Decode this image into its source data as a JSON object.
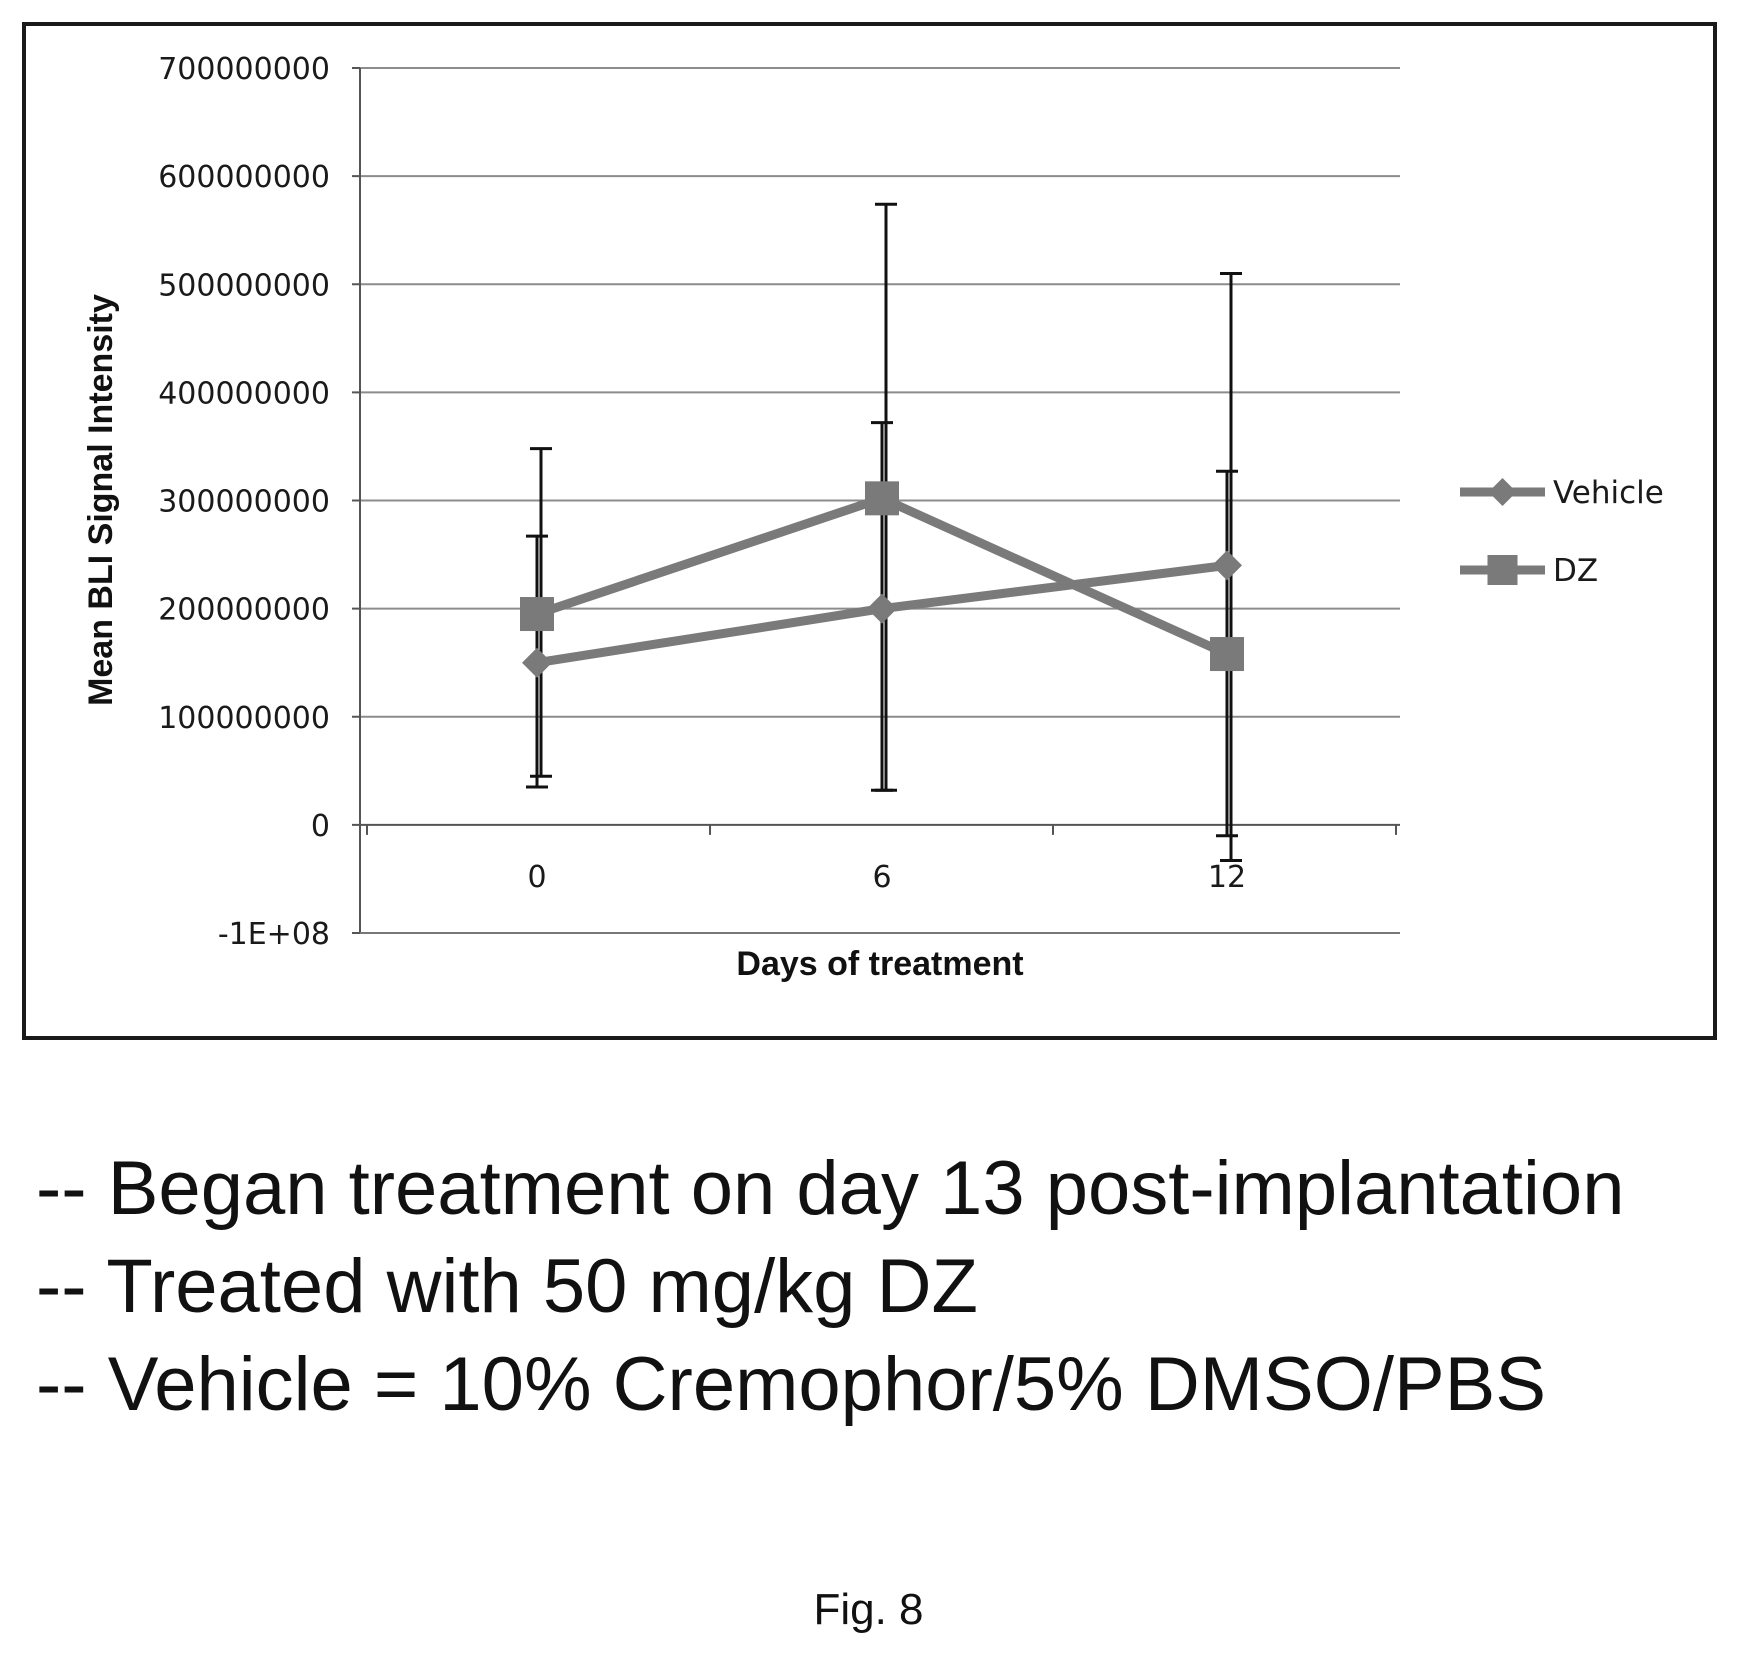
{
  "chart_data": {
    "type": "line",
    "title": "",
    "xlabel": "Days of treatment",
    "ylabel": "Mean BLI Signal Intensity",
    "x": [
      0,
      6,
      12
    ],
    "x_tick_labels": [
      "0",
      "6",
      "12"
    ],
    "ylim": [
      -100000000,
      700000000
    ],
    "y_ticks": [
      -100000000,
      0,
      100000000,
      200000000,
      300000000,
      400000000,
      500000000,
      600000000,
      700000000
    ],
    "y_tick_labels": [
      "-1E+08",
      "0",
      "100000000",
      "200000000",
      "300000000",
      "400000000",
      "500000000",
      "600000000",
      "700000000"
    ],
    "grid": true,
    "legend_position": "right",
    "series": [
      {
        "name": "Vehicle",
        "marker": "diamond",
        "color": "#7a7a7a",
        "values": [
          150000000,
          200000000,
          240000000
        ],
        "error_low": [
          35000000,
          32000000,
          -10000000
        ],
        "error_high": [
          267000000,
          372000000,
          327000000
        ]
      },
      {
        "name": "DZ",
        "marker": "square",
        "color": "#7a7a7a",
        "values": [
          195000000,
          302000000,
          158000000
        ],
        "error_low": [
          45000000,
          32000000,
          -33000000
        ],
        "error_high": [
          348000000,
          574000000,
          510000000
        ]
      }
    ]
  },
  "notes": [
    "-- Began treatment on day 13 post-implantation",
    "-- Treated with 50 mg/kg DZ",
    "-- Vehicle = 10% Cremophor/5% DMSO/PBS"
  ],
  "figure_label": "Fig. 8"
}
